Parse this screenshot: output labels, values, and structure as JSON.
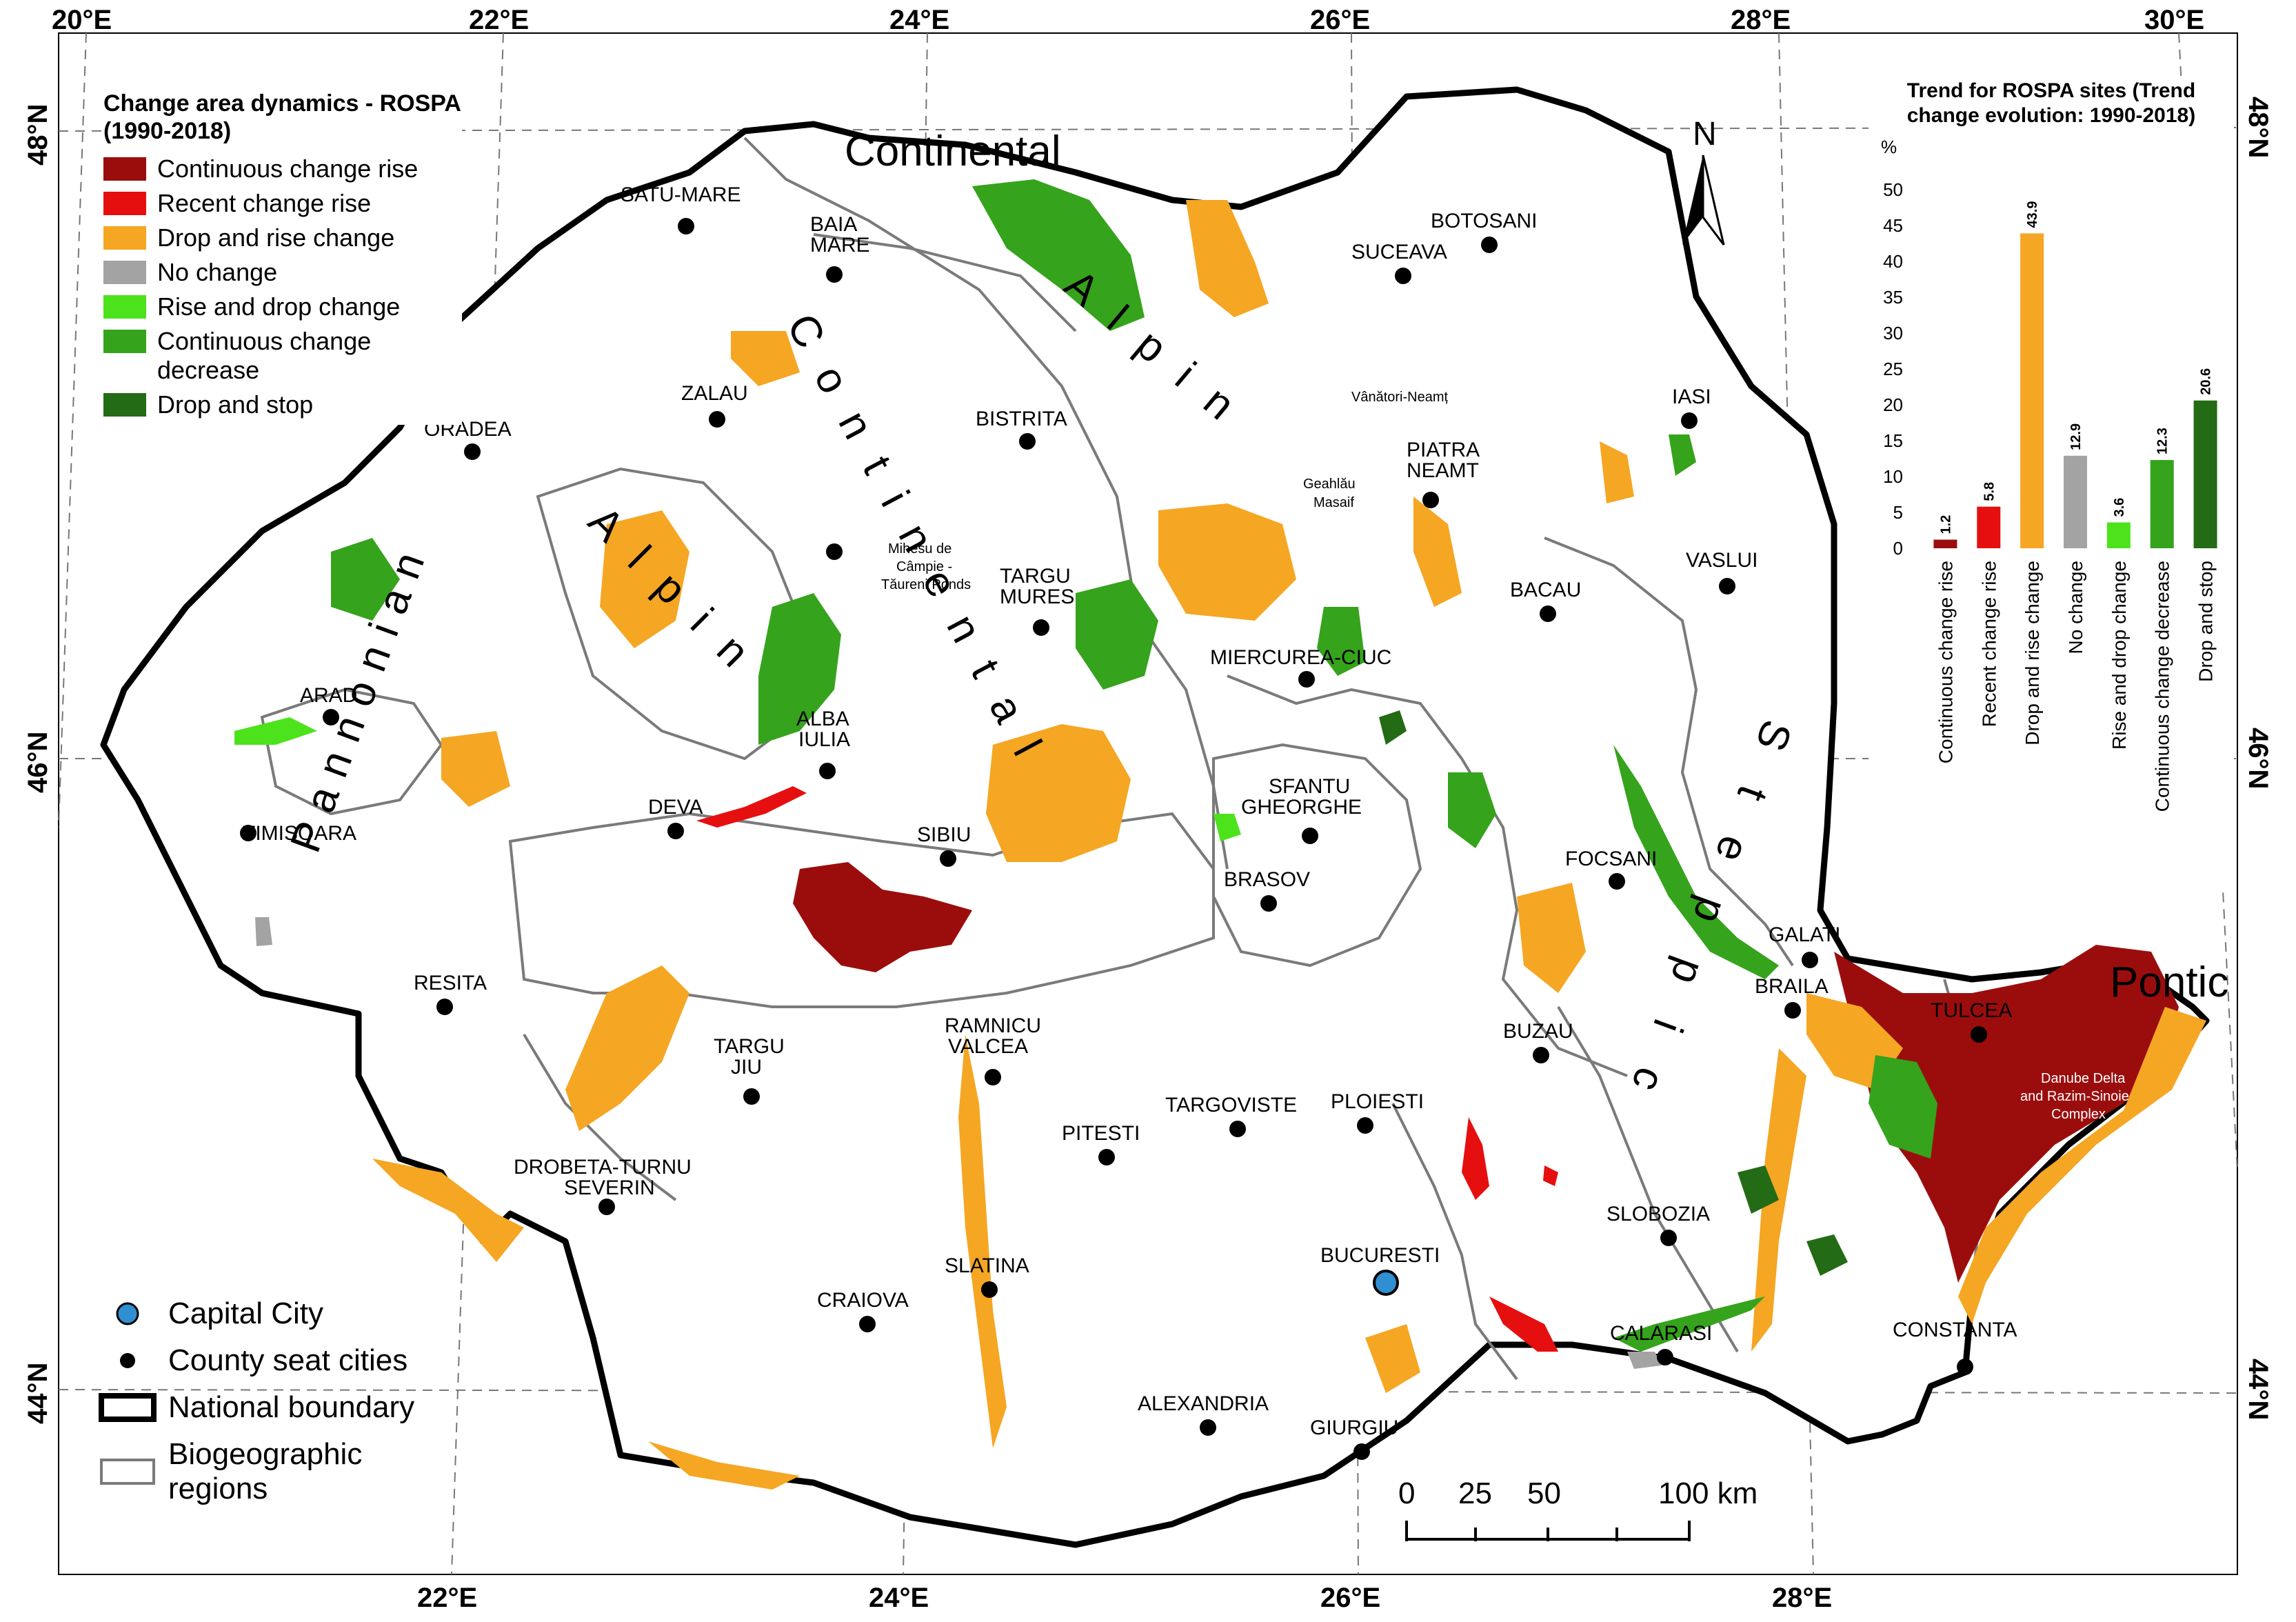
{
  "legend": {
    "title": "Change area dynamics - ROSPA (1990-2018)",
    "items": [
      {
        "label": "Continuous change rise",
        "color": "#9b0d0d"
      },
      {
        "label": "Recent change rise",
        "color": "#e60f0f"
      },
      {
        "label": "Drop and rise change",
        "color": "#f5a623"
      },
      {
        "label": "No change",
        "color": "#a3a3a3"
      },
      {
        "label": "Rise and drop change",
        "color": "#4ce31c"
      },
      {
        "label": "Continuous change decrease",
        "color": "#35a31c"
      },
      {
        "label": "Drop and stop",
        "color": "#236b15"
      }
    ]
  },
  "map_legend": {
    "capital": "Capital City",
    "county": "County seat cities",
    "boundary": "National boundary",
    "regions": "Biogeographic regions"
  },
  "axes": {
    "top": [
      "20°E",
      "22°E",
      "24°E",
      "26°E",
      "28°E",
      "30°E"
    ],
    "bottom": [
      "22°E",
      "24°E",
      "26°E",
      "28°E"
    ],
    "left": [
      "48°N",
      "46°N",
      "44°N"
    ],
    "right": [
      "48°N",
      "46°N",
      "44°N"
    ]
  },
  "north_label": "N",
  "scale": {
    "labels": [
      "0",
      "25",
      "50",
      "100 km"
    ]
  },
  "regions": {
    "continental_top": "Continental",
    "continental_diag": "Continental",
    "alpin_1": "Alpin",
    "alpin_2": "Alpin",
    "pannonian": "Pannonian",
    "steppic": "Steppic",
    "pontic": "Pontic"
  },
  "cities": [
    {
      "name": "SATU-MARE"
    },
    {
      "name": "BAIA"
    },
    {
      "name": "MARE"
    },
    {
      "name": "BOTOSANI"
    },
    {
      "name": "SUCEAVA"
    },
    {
      "name": "ZALAU"
    },
    {
      "name": "BISTRITA"
    },
    {
      "name": "IASI"
    },
    {
      "name": "ORADEA"
    },
    {
      "name": "PIATRA"
    },
    {
      "name": "NEAMT"
    },
    {
      "name": "TARGU"
    },
    {
      "name": "MURES"
    },
    {
      "name": "VASLUI"
    },
    {
      "name": "BACAU"
    },
    {
      "name": "MIERCUREA-CIUC"
    },
    {
      "name": "ARAD"
    },
    {
      "name": "ALBA"
    },
    {
      "name": "IULIA"
    },
    {
      "name": "DEVA"
    },
    {
      "name": "SFANTU"
    },
    {
      "name": "GHEORGHE"
    },
    {
      "name": "TIMISOARA"
    },
    {
      "name": "SIBIU"
    },
    {
      "name": "FOCSANI"
    },
    {
      "name": "BRASOV"
    },
    {
      "name": "GALATI"
    },
    {
      "name": "RESITA"
    },
    {
      "name": "BRAILA"
    },
    {
      "name": "TULCEA"
    },
    {
      "name": "RAMNICU"
    },
    {
      "name": "VALCEA"
    },
    {
      "name": "TARGU"
    },
    {
      "name": "JIU"
    },
    {
      "name": "BUZAU"
    },
    {
      "name": "TARGOVISTE"
    },
    {
      "name": "PLOIESTI"
    },
    {
      "name": "PITESTI"
    },
    {
      "name": "DROBETA-TURNU"
    },
    {
      "name": "SEVERIN"
    },
    {
      "name": "SLOBOZIA"
    },
    {
      "name": "BUCURESTI"
    },
    {
      "name": "SLATINA"
    },
    {
      "name": "CRAIOVA"
    },
    {
      "name": "CALARASI"
    },
    {
      "name": "CONSTANTA"
    },
    {
      "name": "ALEXANDRIA"
    },
    {
      "name": "GIURGIU"
    }
  ],
  "site_labels": {
    "vanatori": "Vânători-Neamț",
    "geahlau_1": "Geahlău",
    "geahlau_2": "Masaif",
    "mihesu_1": "Mihesu de",
    "mihesu_2": "Câmpie -",
    "mihesu_3": "Tăureni Ponds",
    "delta_1": "Danube Delta",
    "delta_2": "and Razim-Sinoie",
    "delta_3": "Complex"
  },
  "chart_data": {
    "type": "bar",
    "title": "Trend for ROSPA sites (Trend change evolution: 1990-2018)",
    "ylabel": "%",
    "ylim": [
      0,
      50
    ],
    "yticks": [
      0,
      5,
      10,
      15,
      20,
      25,
      30,
      35,
      40,
      45,
      50
    ],
    "categories": [
      "Continuous change rise",
      "Recent change rise",
      "Drop and rise change",
      "No change",
      "Rise and drop change",
      "Continuous change decrease",
      "Drop and stop"
    ],
    "values": [
      1.2,
      5.8,
      43.9,
      12.9,
      3.6,
      12.3,
      20.6
    ],
    "value_labels": [
      "1.2",
      "5.8",
      "43.9",
      "12.9",
      "3.6",
      "12.3",
      "20.6"
    ],
    "colors": [
      "#9b0d0d",
      "#e60f0f",
      "#f5a623",
      "#a3a3a3",
      "#4ce31c",
      "#35a31c",
      "#236b15"
    ],
    "grid": false
  }
}
